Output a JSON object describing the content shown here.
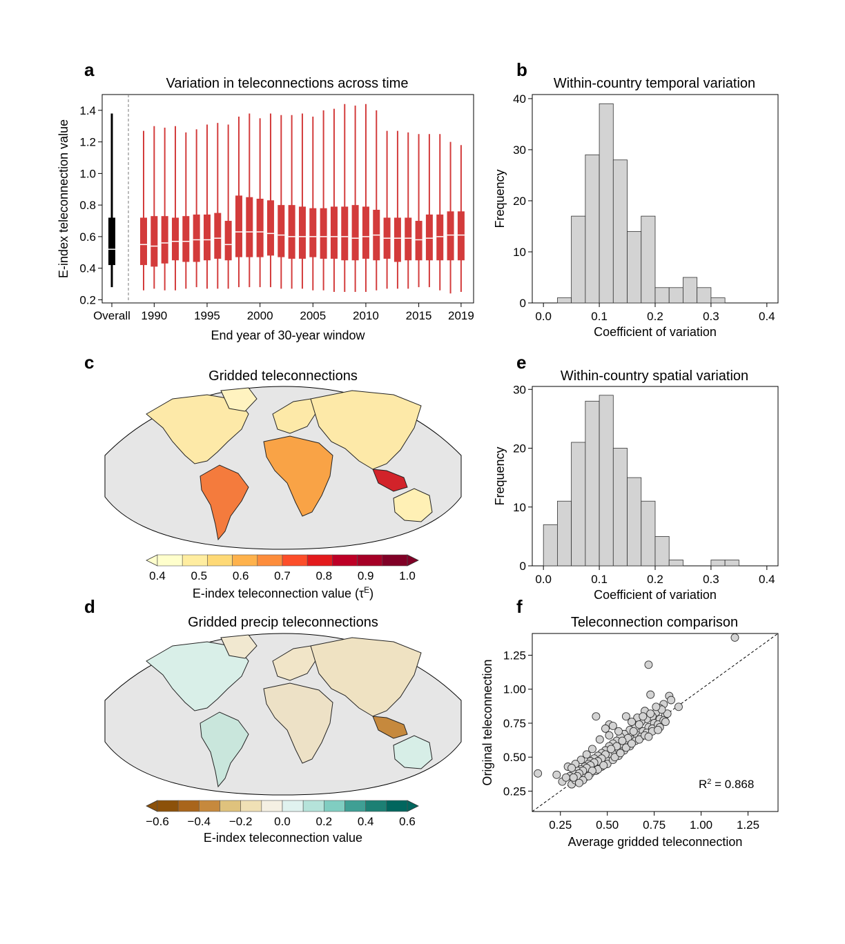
{
  "panels": {
    "a": {
      "letter": "a",
      "title": "Variation in teleconnections across time"
    },
    "b": {
      "letter": "b",
      "title": "Within-country temporal variation"
    },
    "c": {
      "letter": "c",
      "title": "Gridded teleconnections",
      "colorbar_label": "E-index teleconnection value (τ",
      "colorbar_label_sup": "E",
      "colorbar_label_end": ")"
    },
    "d": {
      "letter": "d",
      "title": "Gridded precip teleconnections",
      "colorbar_label": "E-index teleconnection value"
    },
    "e": {
      "letter": "e",
      "title": "Within-country spatial variation"
    },
    "f": {
      "letter": "f",
      "title": "Teleconnection comparison",
      "annotation_r": "R",
      "annotation_sup": "2",
      "annotation_value": " = 0.868"
    }
  },
  "colors": {
    "box_red": "#d33b3b",
    "overall": "#000000",
    "hist_fill": "#d3d3d3",
    "map_bg": "#e6e6e6",
    "seq_colorbar": [
      "#ffffcc",
      "#ffeda0",
      "#fed976",
      "#feb24c",
      "#fd8d3c",
      "#fc4e2a",
      "#e31a1c",
      "#bd0026",
      "#a50026",
      "#800026"
    ],
    "div_colorbar": [
      "#8c510a",
      "#a9651b",
      "#c6893d",
      "#dfc27d",
      "#f0e0b5",
      "#f5f0e3",
      "#e0f2ef",
      "#b5e3da",
      "#80cdc1",
      "#3f9f94",
      "#1c8074",
      "#01665e"
    ]
  },
  "chart_data": [
    {
      "panel": "a",
      "type": "box",
      "title": "Variation in teleconnections across time",
      "xlabel": "End year of 30-year window",
      "ylabel": "E-index teleconnection value",
      "ylim": [
        0.18,
        1.5
      ],
      "yticks": [
        0.2,
        0.4,
        0.6,
        0.8,
        1.0,
        1.2,
        1.4
      ],
      "xtick_labels": [
        "Overall",
        "1990",
        "1995",
        "2000",
        "2005",
        "2010",
        "2015",
        "2019"
      ],
      "overall": {
        "label": "Overall",
        "whisker_low": 0.28,
        "q1": 0.42,
        "median": 0.52,
        "q3": 0.72,
        "whisker_high": 1.38
      },
      "years": [
        1989,
        1990,
        1991,
        1992,
        1993,
        1994,
        1995,
        1996,
        1997,
        1998,
        1999,
        2000,
        2001,
        2002,
        2003,
        2004,
        2005,
        2006,
        2007,
        2008,
        2009,
        2010,
        2011,
        2012,
        2013,
        2014,
        2015,
        2016,
        2017,
        2018,
        2019
      ],
      "whisker_low": [
        0.26,
        0.27,
        0.26,
        0.26,
        0.27,
        0.28,
        0.27,
        0.27,
        0.27,
        0.28,
        0.28,
        0.28,
        0.28,
        0.27,
        0.27,
        0.27,
        0.26,
        0.26,
        0.25,
        0.25,
        0.25,
        0.25,
        0.26,
        0.27,
        0.27,
        0.27,
        0.28,
        0.28,
        0.26,
        0.24,
        0.25
      ],
      "q1": [
        0.42,
        0.41,
        0.43,
        0.45,
        0.44,
        0.44,
        0.45,
        0.46,
        0.45,
        0.47,
        0.47,
        0.47,
        0.48,
        0.47,
        0.46,
        0.46,
        0.47,
        0.46,
        0.46,
        0.45,
        0.45,
        0.46,
        0.45,
        0.46,
        0.44,
        0.45,
        0.45,
        0.45,
        0.45,
        0.45,
        0.45
      ],
      "median": [
        0.55,
        0.54,
        0.56,
        0.57,
        0.57,
        0.58,
        0.58,
        0.59,
        0.55,
        0.63,
        0.63,
        0.63,
        0.62,
        0.61,
        0.6,
        0.6,
        0.6,
        0.6,
        0.6,
        0.6,
        0.59,
        0.6,
        0.61,
        0.59,
        0.59,
        0.59,
        0.58,
        0.59,
        0.6,
        0.61,
        0.61
      ],
      "q3": [
        0.72,
        0.73,
        0.73,
        0.72,
        0.73,
        0.74,
        0.74,
        0.75,
        0.7,
        0.86,
        0.85,
        0.84,
        0.83,
        0.8,
        0.8,
        0.79,
        0.78,
        0.78,
        0.79,
        0.79,
        0.8,
        0.79,
        0.77,
        0.72,
        0.72,
        0.72,
        0.7,
        0.74,
        0.74,
        0.76,
        0.76
      ],
      "whisker_high": [
        1.27,
        1.3,
        1.29,
        1.3,
        1.26,
        1.28,
        1.31,
        1.32,
        1.31,
        1.36,
        1.38,
        1.35,
        1.38,
        1.37,
        1.37,
        1.38,
        1.36,
        1.4,
        1.41,
        1.44,
        1.43,
        1.44,
        1.4,
        1.27,
        1.27,
        1.26,
        1.25,
        1.25,
        1.25,
        1.2,
        1.18
      ]
    },
    {
      "panel": "b",
      "type": "histogram",
      "title": "Within-country temporal variation",
      "xlabel": "Coefficient of variation",
      "ylabel": "Frequency",
      "xlim": [
        -0.02,
        0.42
      ],
      "ylim": [
        0,
        40.8
      ],
      "xticks": [
        0.0,
        0.1,
        0.2,
        0.3,
        0.4
      ],
      "yticks": [
        0,
        10,
        20,
        30,
        40
      ],
      "bin_start": 0.025,
      "bin_width": 0.025,
      "counts": [
        1,
        17,
        29,
        39,
        28,
        14,
        17,
        3,
        3,
        5,
        3,
        1
      ]
    },
    {
      "panel": "e",
      "type": "histogram",
      "title": "Within-country spatial variation",
      "xlabel": "Coefficient of variation",
      "ylabel": "Frequency",
      "xlim": [
        -0.02,
        0.42
      ],
      "ylim": [
        0,
        30.5
      ],
      "xticks": [
        0.0,
        0.1,
        0.2,
        0.3,
        0.4
      ],
      "yticks": [
        0,
        10,
        20,
        30
      ],
      "bin_start": 0.0,
      "bin_width": 0.025,
      "counts": [
        7,
        11,
        21,
        28,
        29,
        20,
        15,
        11,
        5,
        1,
        0,
        0,
        1,
        1
      ]
    },
    {
      "panel": "f",
      "type": "scatter",
      "title": "Teleconnection comparison",
      "xlabel": "Average gridded teleconnection",
      "ylabel": "Original teleconnection",
      "xlim": [
        0.1,
        1.41
      ],
      "ylim": [
        0.1,
        1.41
      ],
      "xticks": [
        0.25,
        0.5,
        0.75,
        1.0,
        1.25
      ],
      "xtick_labels": [
        "0.25",
        "0.50",
        "0.75",
        "1.00",
        "1.25"
      ],
      "yticks": [
        0.25,
        0.5,
        0.75,
        1.0,
        1.25
      ],
      "ytick_labels": [
        "0.25",
        "0.50",
        "0.75",
        "1.00",
        "1.25"
      ],
      "r_squared": 0.868,
      "points": [
        [
          1.18,
          1.38
        ],
        [
          0.72,
          1.18
        ],
        [
          0.83,
          0.95
        ],
        [
          0.73,
          0.96
        ],
        [
          0.88,
          0.87
        ],
        [
          0.84,
          0.92
        ],
        [
          0.8,
          0.89
        ],
        [
          0.78,
          0.86
        ],
        [
          0.76,
          0.83
        ],
        [
          0.74,
          0.8
        ],
        [
          0.71,
          0.78
        ],
        [
          0.68,
          0.76
        ],
        [
          0.65,
          0.72
        ],
        [
          0.62,
          0.7
        ],
        [
          0.59,
          0.67
        ],
        [
          0.57,
          0.65
        ],
        [
          0.55,
          0.62
        ],
        [
          0.53,
          0.6
        ],
        [
          0.51,
          0.58
        ],
        [
          0.49,
          0.55
        ],
        [
          0.47,
          0.53
        ],
        [
          0.45,
          0.51
        ],
        [
          0.43,
          0.49
        ],
        [
          0.41,
          0.47
        ],
        [
          0.4,
          0.45
        ],
        [
          0.38,
          0.43
        ],
        [
          0.36,
          0.41
        ],
        [
          0.34,
          0.4
        ],
        [
          0.32,
          0.38
        ],
        [
          0.3,
          0.36
        ],
        [
          0.44,
          0.8
        ],
        [
          0.6,
          0.8
        ],
        [
          0.51,
          0.74
        ],
        [
          0.53,
          0.73
        ],
        [
          0.49,
          0.71
        ],
        [
          0.13,
          0.38
        ],
        [
          0.23,
          0.37
        ],
        [
          0.29,
          0.43
        ],
        [
          0.26,
          0.32
        ],
        [
          0.31,
          0.3
        ],
        [
          0.35,
          0.34
        ],
        [
          0.37,
          0.36
        ],
        [
          0.39,
          0.39
        ],
        [
          0.42,
          0.42
        ],
        [
          0.44,
          0.44
        ],
        [
          0.46,
          0.46
        ],
        [
          0.48,
          0.48
        ],
        [
          0.5,
          0.5
        ],
        [
          0.52,
          0.52
        ],
        [
          0.54,
          0.54
        ],
        [
          0.56,
          0.56
        ],
        [
          0.58,
          0.58
        ],
        [
          0.61,
          0.61
        ],
        [
          0.63,
          0.63
        ],
        [
          0.66,
          0.66
        ],
        [
          0.69,
          0.69
        ],
        [
          0.72,
          0.72
        ],
        [
          0.75,
          0.75
        ],
        [
          0.78,
          0.78
        ],
        [
          0.81,
          0.81
        ],
        [
          0.7,
          0.84
        ],
        [
          0.66,
          0.79
        ],
        [
          0.63,
          0.76
        ],
        [
          0.56,
          0.69
        ],
        [
          0.51,
          0.66
        ],
        [
          0.46,
          0.63
        ],
        [
          0.42,
          0.56
        ],
        [
          0.39,
          0.52
        ],
        [
          0.36,
          0.48
        ],
        [
          0.33,
          0.45
        ],
        [
          0.31,
          0.42
        ],
        [
          0.28,
          0.35
        ],
        [
          0.33,
          0.33
        ],
        [
          0.38,
          0.35
        ],
        [
          0.41,
          0.38
        ],
        [
          0.44,
          0.4
        ],
        [
          0.47,
          0.43
        ],
        [
          0.5,
          0.45
        ],
        [
          0.53,
          0.48
        ],
        [
          0.56,
          0.51
        ],
        [
          0.59,
          0.55
        ],
        [
          0.62,
          0.58
        ],
        [
          0.65,
          0.62
        ],
        [
          0.68,
          0.65
        ],
        [
          0.71,
          0.68
        ],
        [
          0.74,
          0.71
        ],
        [
          0.77,
          0.74
        ],
        [
          0.8,
          0.77
        ],
        [
          0.82,
          0.82
        ],
        [
          0.79,
          0.85
        ],
        [
          0.76,
          0.87
        ],
        [
          0.73,
          0.82
        ],
        [
          0.69,
          0.8
        ],
        [
          0.67,
          0.74
        ],
        [
          0.64,
          0.69
        ],
        [
          0.61,
          0.64
        ],
        [
          0.58,
          0.62
        ],
        [
          0.55,
          0.58
        ],
        [
          0.52,
          0.56
        ],
        [
          0.49,
          0.52
        ],
        [
          0.47,
          0.49
        ],
        [
          0.45,
          0.47
        ],
        [
          0.43,
          0.46
        ],
        [
          0.41,
          0.44
        ],
        [
          0.39,
          0.42
        ],
        [
          0.37,
          0.4
        ],
        [
          0.35,
          0.38
        ],
        [
          0.34,
          0.36
        ],
        [
          0.32,
          0.35
        ],
        [
          0.45,
          0.41
        ],
        [
          0.48,
          0.44
        ],
        [
          0.42,
          0.4
        ],
        [
          0.4,
          0.36
        ],
        [
          0.37,
          0.33
        ],
        [
          0.35,
          0.31
        ],
        [
          0.54,
          0.5
        ],
        [
          0.57,
          0.53
        ],
        [
          0.6,
          0.57
        ],
        [
          0.63,
          0.6
        ],
        [
          0.67,
          0.63
        ],
        [
          0.7,
          0.66
        ],
        [
          0.74,
          0.69
        ],
        [
          0.78,
          0.72
        ],
        [
          0.81,
          0.76
        ],
        [
          0.77,
          0.7
        ],
        [
          0.72,
          0.65
        ]
      ]
    },
    {
      "panel": "c",
      "type": "map",
      "title": "Gridded teleconnections",
      "colorbar_label": "E-index teleconnection value (τE)",
      "colorbar_ticks": [
        "0.4",
        "0.5",
        "0.6",
        "0.7",
        "0.8",
        "0.9",
        "1.0"
      ]
    },
    {
      "panel": "d",
      "type": "map",
      "title": "Gridded precip teleconnections",
      "colorbar_label": "E-index teleconnection value",
      "colorbar_ticks": [
        "−0.6",
        "−0.4",
        "−0.2",
        "0.0",
        "0.2",
        "0.4",
        "0.6"
      ]
    }
  ]
}
